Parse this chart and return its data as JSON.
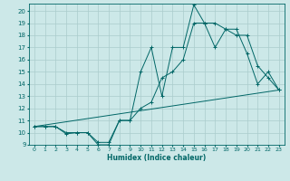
{
  "xlabel": "Humidex (Indice chaleur)",
  "bg_color": "#cce8e8",
  "grid_color": "#aacccc",
  "line_color": "#006666",
  "xlim": [
    -0.5,
    23.5
  ],
  "ylim": [
    9,
    20.6
  ],
  "x_ticks": [
    0,
    1,
    2,
    3,
    4,
    5,
    6,
    7,
    8,
    9,
    10,
    11,
    12,
    13,
    14,
    15,
    16,
    17,
    18,
    19,
    20,
    21,
    22,
    23
  ],
  "y_ticks": [
    9,
    10,
    11,
    12,
    13,
    14,
    15,
    16,
    17,
    18,
    19,
    20
  ],
  "line1_x": [
    0,
    1,
    2,
    3,
    4,
    5,
    6,
    7,
    8,
    9,
    10,
    11,
    12,
    13,
    14,
    15,
    16,
    17,
    18,
    19,
    20,
    21,
    22,
    23
  ],
  "line1_y": [
    10.5,
    10.5,
    10.5,
    10.0,
    10.0,
    10.0,
    9.0,
    9.0,
    11.0,
    11.0,
    15.0,
    17.0,
    13.0,
    17.0,
    17.0,
    20.5,
    19.0,
    19.0,
    18.5,
    18.5,
    16.5,
    14.0,
    15.0,
    13.5
  ],
  "line2_x": [
    0,
    1,
    2,
    3,
    4,
    5,
    6,
    7,
    8,
    9,
    10,
    11,
    12,
    13,
    14,
    15,
    16,
    17,
    18,
    19,
    20,
    21,
    22,
    23
  ],
  "line2_y": [
    10.5,
    10.5,
    10.5,
    9.9,
    10.0,
    10.0,
    9.2,
    9.2,
    11.0,
    11.0,
    12.0,
    12.5,
    14.5,
    15.0,
    16.0,
    19.0,
    19.0,
    17.0,
    18.5,
    18.0,
    18.0,
    15.5,
    14.5,
    13.5
  ],
  "line3_x": [
    0,
    23
  ],
  "line3_y": [
    10.5,
    13.5
  ]
}
